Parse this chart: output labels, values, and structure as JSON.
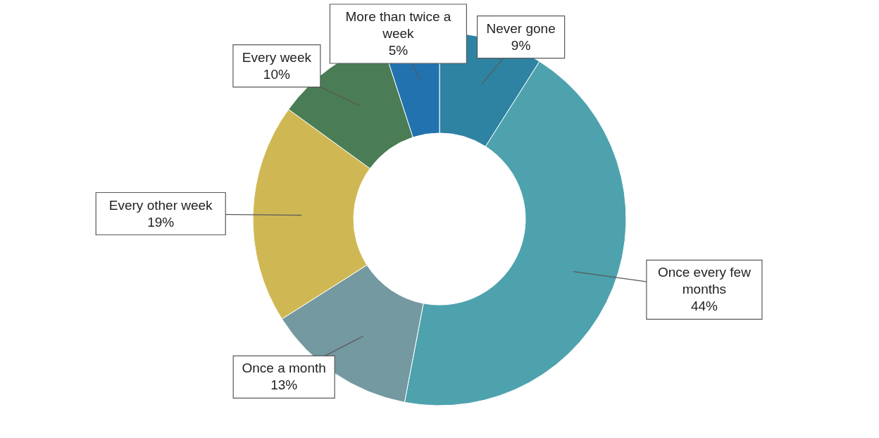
{
  "chart_data": {
    "type": "donut",
    "categories": [
      "Never gone",
      "Once every few months",
      "Once a month",
      "Every other week",
      "Every week",
      "More than twice a week"
    ],
    "values": [
      9,
      44,
      13,
      19,
      10,
      5
    ],
    "colors": [
      "#2e83a3",
      "#4da2ad",
      "#7499a0",
      "#cfb854",
      "#4a7c55",
      "#2272b0"
    ],
    "value_labels": [
      "9%",
      "44%",
      "13%",
      "19%",
      "10%",
      "5%"
    ]
  }
}
